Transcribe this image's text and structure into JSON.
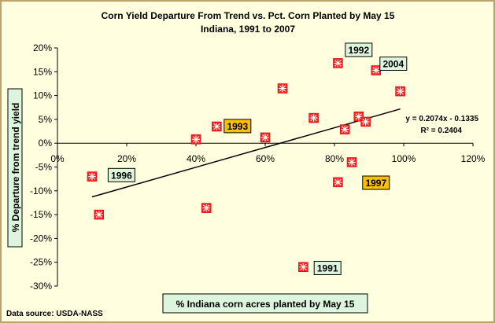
{
  "chart_data": {
    "type": "scatter",
    "title": "Corn Yield Departure From Trend vs. Pct. Corn Planted by May 15",
    "subtitle": "Indiana, 1991 to 2007",
    "xlabel": "% Indiana corn acres planted by May 15",
    "ylabel": "% Departure from trend yield",
    "source": "Data source: USDA-NASS",
    "xlim": [
      0,
      1.2
    ],
    "ylim": [
      -0.3,
      0.2
    ],
    "x_ticks": [
      "0%",
      "20%",
      "40%",
      "60%",
      "80%",
      "100%",
      "120%"
    ],
    "y_ticks": [
      "20%",
      "15%",
      "10%",
      "5%",
      "0%",
      "-5%",
      "-10%",
      "-15%",
      "-20%",
      "-25%",
      "-30%"
    ],
    "grid": false,
    "legend": "none",
    "points": [
      {
        "x": 0.1,
        "y": -0.07
      },
      {
        "x": 0.12,
        "y": -0.15
      },
      {
        "x": 0.4,
        "y": 0.008
      },
      {
        "x": 0.43,
        "y": -0.136
      },
      {
        "x": 0.46,
        "y": 0.035
      },
      {
        "x": 0.6,
        "y": 0.012
      },
      {
        "x": 0.65,
        "y": 0.115
      },
      {
        "x": 0.71,
        "y": -0.26
      },
      {
        "x": 0.74,
        "y": 0.053
      },
      {
        "x": 0.81,
        "y": 0.168
      },
      {
        "x": 0.81,
        "y": -0.082
      },
      {
        "x": 0.83,
        "y": 0.029
      },
      {
        "x": 0.85,
        "y": -0.04
      },
      {
        "x": 0.87,
        "y": 0.056
      },
      {
        "x": 0.89,
        "y": 0.045
      },
      {
        "x": 0.92,
        "y": 0.153
      },
      {
        "x": 0.99,
        "y": 0.109
      }
    ],
    "annotations": [
      {
        "text": "1996",
        "x": 0.185,
        "y": -0.067,
        "style": "green"
      },
      {
        "text": "1993",
        "x": 0.52,
        "y": 0.036,
        "style": "orange"
      },
      {
        "text": "1992",
        "x": 0.87,
        "y": 0.196,
        "style": "green"
      },
      {
        "text": "2004",
        "x": 0.97,
        "y": 0.167,
        "style": "green"
      },
      {
        "text": "1997",
        "x": 0.92,
        "y": -0.083,
        "style": "orange"
      },
      {
        "text": "1991",
        "x": 0.78,
        "y": -0.262,
        "style": "green"
      }
    ],
    "trendline": {
      "slope": 0.2074,
      "intercept": -0.1335,
      "x_range": [
        0.1,
        0.99
      ],
      "equation": "y = 0.2074x - 0.1335",
      "r_squared": "R² = 0.2404"
    },
    "colors": {
      "frame_bg": "#ffffdf",
      "frame_border": "#b9a26e",
      "marker_fill": "#ff1f1f",
      "marker_stroke": "#ffffff",
      "green_label_bg": "#ddf5dd",
      "orange_label_bg": "#ffc000",
      "text": "#000000"
    }
  }
}
